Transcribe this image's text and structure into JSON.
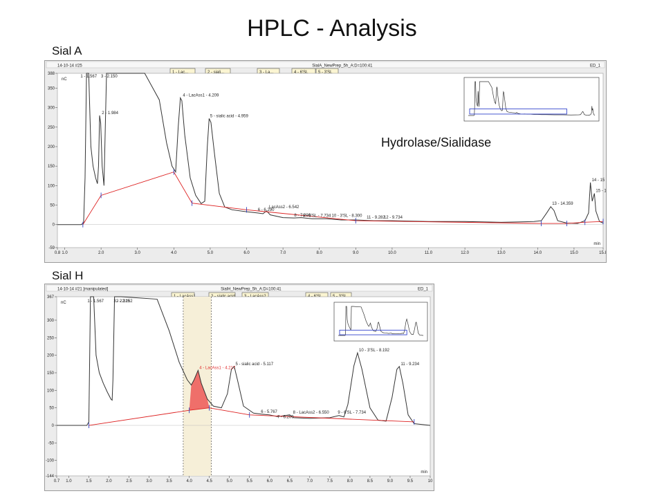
{
  "slide_title": "HPLC - Analysis",
  "annotation": "Hydrolase/Sialidase",
  "colors": {
    "trace": "#333333",
    "baseline": "#dd2020",
    "marker": "#3040c0",
    "inset_box": "#3344cc",
    "highlight": "#f6efd8",
    "peak_fill": "#ef6f6a",
    "accent_text": "#e03030"
  },
  "panels": [
    {
      "caption": "Sial A",
      "header_left": "14-10-14 #25",
      "header_center": "SialA_NewPrep_5h_A:D=100:41",
      "header_right": "ED_1",
      "tabs": [
        "1 - Lac...",
        "2 - siali...",
        "3 - La...",
        "4 - 6'SL",
        "5 - 3'SL"
      ],
      "y_unit": "nC",
      "x_unit": "min"
    },
    {
      "caption": "Sial H",
      "header_left": "14-10-14 #21 [manipulated]",
      "header_center": "SialH_NewPrep_5h_A:D=100:41",
      "header_right": "ED_1",
      "tabs": [
        "1 - LacAss1",
        "2 - sialic acid",
        "3 - LacAss2",
        "4 - 6'SL",
        "5 - 3'SL"
      ],
      "y_unit": "nC",
      "x_unit": "min"
    }
  ],
  "chart_data": [
    {
      "type": "line",
      "title": "Sial A",
      "xlim": [
        0.8,
        15.8
      ],
      "ylim": [
        -59,
        388
      ],
      "xticks": [
        "0.8",
        "1.0",
        "2.0",
        "3.0",
        "4.0",
        "5.0",
        "6.0",
        "7.0",
        "8.0",
        "9.0",
        "10.0",
        "11.0",
        "12.0",
        "13.0",
        "14.0",
        "15.0",
        "15.8"
      ],
      "xtick_values": [
        0.8,
        1,
        2,
        3,
        4,
        5,
        6,
        7,
        8,
        9,
        10,
        11,
        12,
        13,
        14,
        15,
        15.8
      ],
      "yticks": [
        "-59",
        "0",
        "50",
        "100",
        "150",
        "200",
        "250",
        "300",
        "350",
        "388"
      ],
      "ytick_values": [
        -59,
        0,
        50,
        100,
        150,
        200,
        250,
        300,
        350,
        388
      ],
      "trace": [
        [
          0.8,
          0
        ],
        [
          1.45,
          0
        ],
        [
          1.52,
          4
        ],
        [
          1.56,
          120
        ],
        [
          1.6,
          390
        ],
        [
          1.66,
          390
        ],
        [
          1.72,
          200
        ],
        [
          1.78,
          150
        ],
        [
          1.85,
          120
        ],
        [
          1.9,
          105
        ],
        [
          1.93,
          150
        ],
        [
          1.96,
          280
        ],
        [
          1.99,
          260
        ],
        [
          2.03,
          150
        ],
        [
          2.08,
          100
        ],
        [
          2.15,
          390
        ],
        [
          2.45,
          390
        ],
        [
          3.2,
          390
        ],
        [
          3.6,
          320
        ],
        [
          3.8,
          210
        ],
        [
          3.95,
          150
        ],
        [
          4.05,
          135
        ],
        [
          4.12,
          250
        ],
        [
          4.18,
          325
        ],
        [
          4.22,
          318
        ],
        [
          4.3,
          230
        ],
        [
          4.45,
          120
        ],
        [
          4.6,
          75
        ],
        [
          4.75,
          54
        ],
        [
          4.85,
          60
        ],
        [
          4.92,
          200
        ],
        [
          4.97,
          272
        ],
        [
          5.02,
          262
        ],
        [
          5.12,
          180
        ],
        [
          5.25,
          80
        ],
        [
          5.4,
          45
        ],
        [
          5.6,
          38
        ],
        [
          6.0,
          33
        ],
        [
          6.3,
          30
        ],
        [
          6.45,
          28
        ],
        [
          6.55,
          35
        ],
        [
          6.65,
          25
        ],
        [
          7.0,
          18
        ],
        [
          7.3,
          17
        ],
        [
          7.5,
          18
        ],
        [
          7.8,
          15
        ],
        [
          8.2,
          15
        ],
        [
          8.6,
          12
        ],
        [
          9.0,
          12
        ],
        [
          9.5,
          10
        ],
        [
          10.0,
          10
        ],
        [
          11.0,
          8
        ],
        [
          12.0,
          8
        ],
        [
          13.0,
          6
        ],
        [
          13.9,
          8
        ],
        [
          14.1,
          10
        ],
        [
          14.25,
          30
        ],
        [
          14.36,
          46
        ],
        [
          14.45,
          36
        ],
        [
          14.55,
          10
        ],
        [
          14.8,
          4
        ],
        [
          15.1,
          3
        ],
        [
          15.3,
          10
        ],
        [
          15.4,
          30
        ],
        [
          15.45,
          108
        ],
        [
          15.5,
          60
        ],
        [
          15.56,
          80
        ],
        [
          15.6,
          35
        ],
        [
          15.7,
          8
        ],
        [
          15.8,
          4
        ]
      ],
      "baseline": [
        [
          1.5,
          0
        ],
        [
          2.0,
          75
        ],
        [
          4.0,
          135
        ],
        [
          4.5,
          55
        ],
        [
          6.0,
          38
        ],
        [
          9.0,
          10
        ],
        [
          14.1,
          3
        ],
        [
          14.8,
          3
        ],
        [
          15.3,
          6
        ],
        [
          15.8,
          8
        ]
      ],
      "peaks": [
        {
          "label": "1 - 1.567",
          "x": 1.567,
          "y": 390
        },
        {
          "label": "3 - 2.150",
          "x": 2.15,
          "y": 390
        },
        {
          "label": "2 - 1.984",
          "x": 1.984,
          "y": 280
        },
        {
          "label": "4 - LacAss1 - 4.209",
          "x": 4.209,
          "y": 325
        },
        {
          "label": "5 - sialic acid - 4.959",
          "x": 4.959,
          "y": 272
        },
        {
          "label": "6 - 6.290",
          "x": 6.29,
          "y": 30
        },
        {
          "label": "LacAss2 - 6.542",
          "x": 6.542,
          "y": 35
        },
        {
          "label": "8 - 7.290",
          "x": 7.29,
          "y": 17
        },
        {
          "label": "9 - 6'SL - 7.734",
          "x": 7.734,
          "y": 18
        },
        {
          "label": "10 - 3'SL - 8.300",
          "x": 8.3,
          "y": 15
        },
        {
          "label": "11 - 9.282",
          "x": 9.282,
          "y": 12
        },
        {
          "label": "12 - 9.734",
          "x": 9.734,
          "y": 10
        },
        {
          "label": "13 - 14.359",
          "x": 14.359,
          "y": 46
        },
        {
          "label": "14 - 15",
          "x": 15.45,
          "y": 108
        },
        {
          "label": "15 - 1",
          "x": 15.56,
          "y": 80
        }
      ]
    },
    {
      "type": "line",
      "title": "Sial H",
      "xlim": [
        0.7,
        10.0
      ],
      "ylim": [
        -144,
        367
      ],
      "xticks": [
        "0.7",
        "1.0",
        "1.5",
        "2.0",
        "2.5",
        "3.0",
        "3.5",
        "4.0",
        "4.5",
        "5.0",
        "5.5",
        "6.0",
        "6.5",
        "7.0",
        "7.5",
        "8.0",
        "8.5",
        "9.0",
        "9.5",
        "10"
      ],
      "xtick_values": [
        0.7,
        1,
        1.5,
        2,
        2.5,
        3,
        3.5,
        4,
        4.5,
        5,
        5.5,
        6,
        6.5,
        7,
        7.5,
        8,
        8.5,
        9,
        9.5,
        10
      ],
      "yticks": [
        "-144",
        "-100",
        "-50",
        "0",
        "50",
        "100",
        "150",
        "200",
        "250",
        "300",
        "367"
      ],
      "ytick_values": [
        -144,
        -100,
        -50,
        0,
        50,
        100,
        150,
        200,
        250,
        300,
        367
      ],
      "trace": [
        [
          0.7,
          0
        ],
        [
          1.45,
          0
        ],
        [
          1.5,
          10
        ],
        [
          1.54,
          370
        ],
        [
          1.62,
          370
        ],
        [
          1.68,
          200
        ],
        [
          1.76,
          150
        ],
        [
          1.86,
          120
        ],
        [
          1.96,
          95
        ],
        [
          2.05,
          75
        ],
        [
          2.08,
          72
        ],
        [
          2.1,
          130
        ],
        [
          2.14,
          370
        ],
        [
          2.3,
          370
        ],
        [
          3.2,
          360
        ],
        [
          3.5,
          270
        ],
        [
          3.75,
          180
        ],
        [
          3.95,
          130
        ],
        [
          4.05,
          115
        ],
        [
          4.12,
          130
        ],
        [
          4.22,
          157
        ],
        [
          4.3,
          120
        ],
        [
          4.45,
          75
        ],
        [
          4.6,
          55
        ],
        [
          4.8,
          50
        ],
        [
          4.95,
          90
        ],
        [
          5.05,
          160
        ],
        [
          5.12,
          168
        ],
        [
          5.2,
          130
        ],
        [
          5.35,
          55
        ],
        [
          5.6,
          35
        ],
        [
          5.8,
          32
        ],
        [
          6.0,
          30
        ],
        [
          6.2,
          25
        ],
        [
          6.5,
          30
        ],
        [
          6.6,
          22
        ],
        [
          7.0,
          20
        ],
        [
          7.5,
          22
        ],
        [
          7.73,
          28
        ],
        [
          7.85,
          24
        ],
        [
          7.95,
          60
        ],
        [
          8.1,
          170
        ],
        [
          8.19,
          207
        ],
        [
          8.3,
          160
        ],
        [
          8.5,
          50
        ],
        [
          8.7,
          15
        ],
        [
          8.9,
          12
        ],
        [
          9.05,
          80
        ],
        [
          9.17,
          160
        ],
        [
          9.23,
          168
        ],
        [
          9.32,
          120
        ],
        [
          9.45,
          30
        ],
        [
          9.6,
          5
        ],
        [
          10.0,
          0
        ]
      ],
      "baseline": [
        [
          1.5,
          0
        ],
        [
          4.0,
          43
        ],
        [
          4.5,
          50
        ],
        [
          5.5,
          30
        ],
        [
          9.6,
          10
        ]
      ],
      "highlight_range": [
        3.85,
        4.55
      ],
      "filled_peak": [
        4.0,
        4.5
      ],
      "peaks": [
        {
          "label": "1 - 1.567",
          "x": 1.567,
          "y": 370
        },
        {
          "label": "2 - 2.162",
          "x": 2.162,
          "y": 370
        },
        {
          "label": "3 - 2.325",
          "x": 2.325,
          "y": 370
        },
        {
          "label": "4 - LacAss1 - 4.217",
          "x": 4.217,
          "y": 157
        },
        {
          "label": "5 - sialic acid - 5.117",
          "x": 5.117,
          "y": 168
        },
        {
          "label": "6 - 5.767",
          "x": 5.767,
          "y": 32
        },
        {
          "label": "7 - 6.209",
          "x": 6.209,
          "y": 25
        },
        {
          "label": "8 - LacAss2 - 6.550",
          "x": 6.55,
          "y": 30
        },
        {
          "label": "9 - 6'SL - 7.734",
          "x": 7.734,
          "y": 28
        },
        {
          "label": "10 - 3'SL - 8.192",
          "x": 8.192,
          "y": 207
        },
        {
          "label": "11 - 9.234",
          "x": 9.234,
          "y": 168
        }
      ]
    }
  ]
}
